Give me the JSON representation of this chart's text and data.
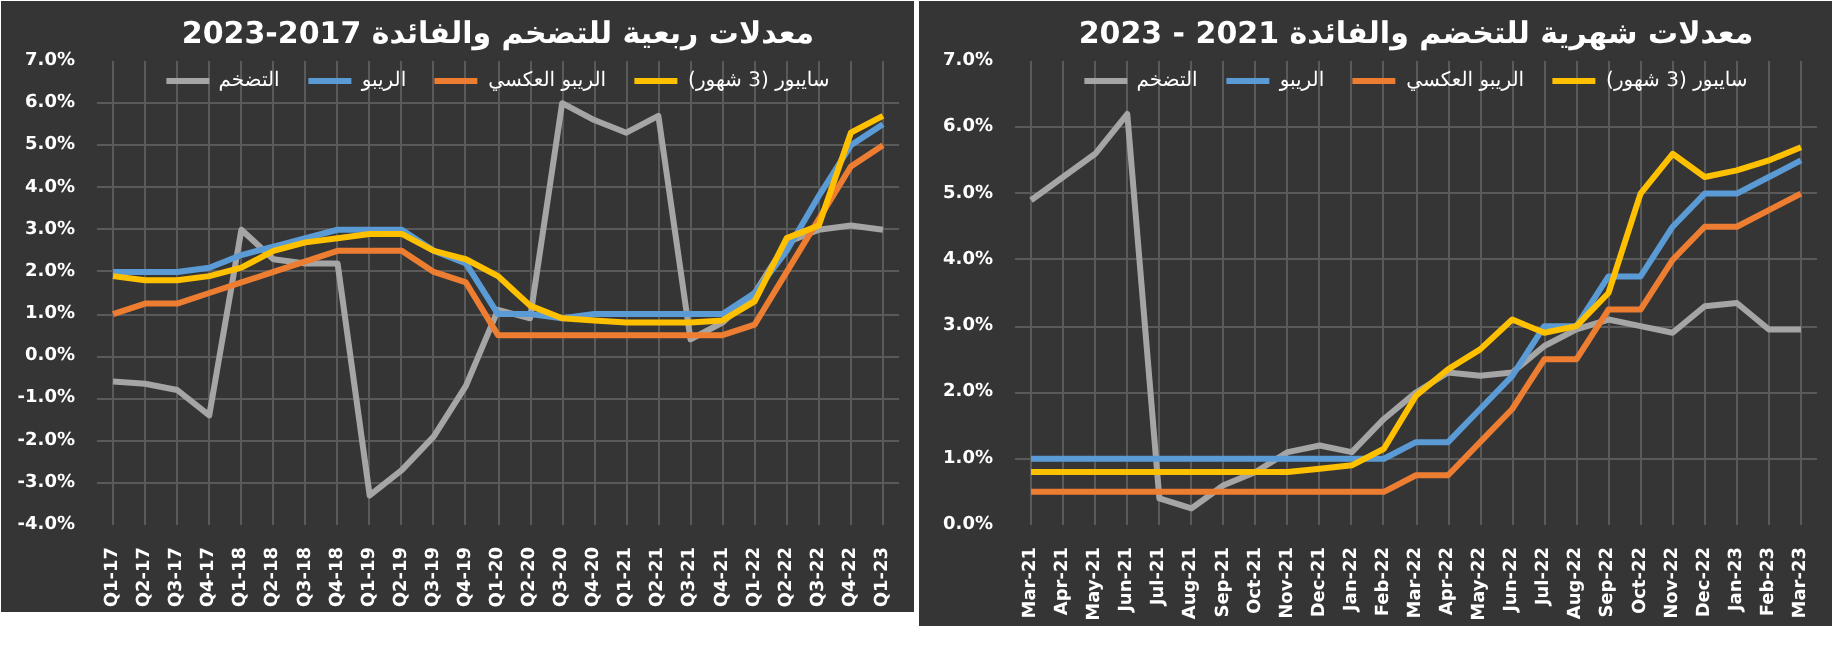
{
  "chart_data": [
    {
      "type": "line",
      "title": "معدلات ربعية للتضخم والفائدة 2017-2023",
      "categories": [
        "Q1-17",
        "Q2-17",
        "Q3-17",
        "Q4-17",
        "Q1-18",
        "Q2-18",
        "Q3-18",
        "Q4-18",
        "Q1-19",
        "Q2-19",
        "Q3-19",
        "Q4-19",
        "Q1-20",
        "Q2-20",
        "Q3-20",
        "Q4-20",
        "Q1-21",
        "Q2-21",
        "Q3-21",
        "Q4-21",
        "Q1-22",
        "Q2-22",
        "Q3-22",
        "Q4-22",
        "Q1-23"
      ],
      "series": [
        {
          "name": "التضخم",
          "color": "#a5a5a5",
          "values": [
            -0.6,
            -0.65,
            -0.8,
            -1.4,
            3.0,
            2.3,
            2.2,
            2.2,
            -3.3,
            -2.7,
            -1.9,
            -0.7,
            1.1,
            0.9,
            6.0,
            5.6,
            5.3,
            5.7,
            0.4,
            0.8,
            1.5,
            2.7,
            3.0,
            3.1,
            3.0
          ]
        },
        {
          "name": "الريبو",
          "color": "#5b9bd5",
          "values": [
            2.0,
            2.0,
            2.0,
            2.1,
            2.4,
            2.6,
            2.8,
            3.0,
            3.0,
            3.0,
            2.5,
            2.2,
            1.0,
            1.0,
            0.9,
            1.0,
            1.0,
            1.0,
            1.0,
            1.0,
            1.5,
            2.5,
            3.8,
            5.0,
            5.5
          ]
        },
        {
          "name": "الريبو العكسي",
          "color": "#ed7d31",
          "values": [
            1.0,
            1.25,
            1.25,
            1.5,
            1.75,
            2.0,
            2.25,
            2.5,
            2.5,
            2.5,
            2.0,
            1.75,
            0.5,
            0.5,
            0.5,
            0.5,
            0.5,
            0.5,
            0.5,
            0.5,
            0.75,
            2.0,
            3.25,
            4.5,
            5.0
          ]
        },
        {
          "name": "سايبور (3 شهور)",
          "color": "#ffc000",
          "values": [
            1.9,
            1.8,
            1.8,
            1.9,
            2.1,
            2.5,
            2.7,
            2.8,
            2.9,
            2.9,
            2.5,
            2.3,
            1.9,
            1.2,
            0.9,
            0.85,
            0.8,
            0.8,
            0.8,
            0.85,
            1.3,
            2.8,
            3.1,
            5.3,
            5.7
          ]
        }
      ],
      "ylim": [
        -4,
        7
      ],
      "yticks": [
        {
          "value": -4,
          "label": "-4.0%"
        },
        {
          "value": -3,
          "label": "-3.0%"
        },
        {
          "value": -2,
          "label": "-2.0%"
        },
        {
          "value": -1,
          "label": "-1.0%"
        },
        {
          "value": 0,
          "label": "0.0%"
        },
        {
          "value": 1,
          "label": "1.0%"
        },
        {
          "value": 2,
          "label": "2.0%"
        },
        {
          "value": 3,
          "label": "3.0%"
        },
        {
          "value": 4,
          "label": "4.0%"
        },
        {
          "value": 5,
          "label": "5.0%"
        },
        {
          "value": 6,
          "label": "6.0%"
        },
        {
          "value": 7,
          "label": "7.0%"
        }
      ],
      "grid": true,
      "legend": "top",
      "marker": "none",
      "line_style": "solid"
    },
    {
      "type": "line",
      "title": "معدلات شهرية للتخضم والفائدة 2021 - 2023",
      "categories": [
        "Mar-21",
        "Apr-21",
        "May-21",
        "Jun-21",
        "Jul-21",
        "Aug-21",
        "Sep-21",
        "Oct-21",
        "Nov-21",
        "Dec-21",
        "Jan-22",
        "Feb-22",
        "Mar-22",
        "Apr-22",
        "May-22",
        "Jun-22",
        "Jul-22",
        "Aug-22",
        "Sep-22",
        "Oct-22",
        "Nov-22",
        "Dec-22",
        "Jan-23",
        "Feb-23",
        "Mar-23"
      ],
      "series": [
        {
          "name": "التضخم",
          "color": "#a5a5a5",
          "values": [
            4.9,
            5.25,
            5.6,
            6.2,
            0.4,
            0.25,
            0.6,
            0.8,
            1.1,
            1.2,
            1.1,
            1.6,
            2.0,
            2.3,
            2.25,
            2.3,
            2.7,
            2.95,
            3.1,
            3.0,
            2.9,
            3.3,
            3.35,
            2.95,
            2.95
          ]
        },
        {
          "name": "الريبو",
          "color": "#5b9bd5",
          "values": [
            1.0,
            1.0,
            1.0,
            1.0,
            1.0,
            1.0,
            1.0,
            1.0,
            1.0,
            1.0,
            1.0,
            1.0,
            1.25,
            1.25,
            1.75,
            2.25,
            3.0,
            3.0,
            3.75,
            3.75,
            4.5,
            5.0,
            5.0,
            5.25,
            5.5
          ]
        },
        {
          "name": "الريبو العكسي",
          "color": "#ed7d31",
          "values": [
            0.5,
            0.5,
            0.5,
            0.5,
            0.5,
            0.5,
            0.5,
            0.5,
            0.5,
            0.5,
            0.5,
            0.5,
            0.75,
            0.75,
            1.25,
            1.75,
            2.5,
            2.5,
            3.25,
            3.25,
            4.0,
            4.5,
            4.5,
            4.75,
            5.0
          ]
        },
        {
          "name": "سايبور (3 شهور)",
          "color": "#ffc000",
          "values": [
            0.8,
            0.8,
            0.8,
            0.8,
            0.8,
            0.8,
            0.8,
            0.8,
            0.8,
            0.85,
            0.9,
            1.15,
            1.95,
            2.35,
            2.65,
            3.1,
            2.9,
            3.0,
            3.5,
            5.0,
            5.6,
            5.25,
            5.35,
            5.5,
            5.7
          ]
        }
      ],
      "ylim": [
        0,
        7
      ],
      "yticks": [
        {
          "value": 0,
          "label": "0.0%"
        },
        {
          "value": 1,
          "label": "1.0%"
        },
        {
          "value": 2,
          "label": "2.0%"
        },
        {
          "value": 3,
          "label": "3.0%"
        },
        {
          "value": 4,
          "label": "4.0%"
        },
        {
          "value": 5,
          "label": "5.0%"
        },
        {
          "value": 6,
          "label": "6.0%"
        },
        {
          "value": 7,
          "label": "7.0%"
        }
      ],
      "grid": true,
      "legend": "top",
      "marker": "none",
      "line_style": "solid"
    }
  ]
}
